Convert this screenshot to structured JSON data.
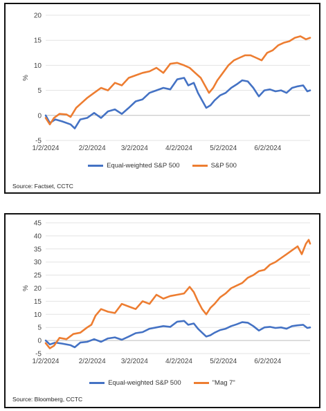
{
  "chart_data": [
    {
      "type": "line",
      "ylabel": "%",
      "ylim": [
        -5,
        20
      ],
      "yticks": [
        "-5",
        "0",
        "5",
        "10",
        "15",
        "20"
      ],
      "xticks": [
        "1/2/2024",
        "2/2/2024",
        "3/2/2024",
        "4/2/2024",
        "5/2/2024",
        "6/2/2024"
      ],
      "grid": "horizontal",
      "legend_position": "bottom",
      "source": "Source: Factset, CCTC",
      "series": [
        {
          "name": "Equal-weighted S&P 500",
          "color": "#4472C4",
          "points": [
            [
              0,
              0
            ],
            [
              3,
              -1.5
            ],
            [
              7,
              -0.8
            ],
            [
              12,
              -1.2
            ],
            [
              18,
              -1.8
            ],
            [
              21,
              -2.6
            ],
            [
              25,
              -0.8
            ],
            [
              30,
              -0.5
            ],
            [
              35,
              0.5
            ],
            [
              40,
              -0.5
            ],
            [
              45,
              0.8
            ],
            [
              50,
              1.2
            ],
            [
              55,
              0.3
            ],
            [
              60,
              1.5
            ],
            [
              65,
              2.8
            ],
            [
              70,
              3.2
            ],
            [
              75,
              4.5
            ],
            [
              80,
              5.0
            ],
            [
              85,
              5.5
            ],
            [
              90,
              5.2
            ],
            [
              95,
              7.2
            ],
            [
              100,
              7.5
            ],
            [
              103,
              6.0
            ],
            [
              107,
              6.5
            ],
            [
              110,
              4.5
            ],
            [
              113,
              3.0
            ],
            [
              116,
              1.5
            ],
            [
              119,
              2.0
            ],
            [
              122,
              3.0
            ],
            [
              126,
              4.0
            ],
            [
              130,
              4.5
            ],
            [
              134,
              5.5
            ],
            [
              138,
              6.2
            ],
            [
              142,
              7.0
            ],
            [
              146,
              6.8
            ],
            [
              150,
              5.5
            ],
            [
              154,
              3.8
            ],
            [
              158,
              5.0
            ],
            [
              162,
              5.2
            ],
            [
              166,
              4.8
            ],
            [
              170,
              5.0
            ],
            [
              174,
              4.5
            ],
            [
              178,
              5.5
            ],
            [
              182,
              5.8
            ],
            [
              186,
              6.0
            ],
            [
              189,
              4.8
            ],
            [
              191,
              5.0
            ]
          ]
        },
        {
          "name": "S&P 500",
          "color": "#ED7D31",
          "points": [
            [
              0,
              -0.5
            ],
            [
              3,
              -1.8
            ],
            [
              6,
              -0.5
            ],
            [
              10,
              0.3
            ],
            [
              15,
              0.2
            ],
            [
              18,
              -0.3
            ],
            [
              22,
              1.5
            ],
            [
              26,
              2.5
            ],
            [
              30,
              3.5
            ],
            [
              35,
              4.5
            ],
            [
              40,
              5.5
            ],
            [
              45,
              5.0
            ],
            [
              50,
              6.5
            ],
            [
              55,
              6.0
            ],
            [
              60,
              7.5
            ],
            [
              65,
              8.0
            ],
            [
              70,
              8.5
            ],
            [
              75,
              8.8
            ],
            [
              80,
              9.5
            ],
            [
              85,
              8.5
            ],
            [
              90,
              10.3
            ],
            [
              95,
              10.5
            ],
            [
              100,
              10.0
            ],
            [
              104,
              9.5
            ],
            [
              108,
              8.5
            ],
            [
              112,
              7.5
            ],
            [
              115,
              6.0
            ],
            [
              118,
              4.5
            ],
            [
              121,
              5.5
            ],
            [
              124,
              7.0
            ],
            [
              128,
              8.5
            ],
            [
              132,
              10.0
            ],
            [
              136,
              11.0
            ],
            [
              140,
              11.5
            ],
            [
              144,
              12.0
            ],
            [
              148,
              12.0
            ],
            [
              152,
              11.5
            ],
            [
              156,
              11.0
            ],
            [
              160,
              12.5
            ],
            [
              164,
              13.0
            ],
            [
              168,
              14.0
            ],
            [
              172,
              14.5
            ],
            [
              176,
              14.8
            ],
            [
              180,
              15.5
            ],
            [
              184,
              15.8
            ],
            [
              188,
              15.2
            ],
            [
              191,
              15.5
            ]
          ]
        }
      ]
    },
    {
      "type": "line",
      "ylabel": "%",
      "ylim": [
        -5,
        45
      ],
      "yticks": [
        "-5",
        "0",
        "5",
        "10",
        "15",
        "20",
        "25",
        "30",
        "35",
        "40",
        "45"
      ],
      "xticks": [
        "1/2/2024",
        "2/2/2024",
        "3/2/2024",
        "4/2/2024",
        "5/2/2024",
        "6/2/2024"
      ],
      "grid": "horizontal",
      "legend_position": "bottom",
      "source": "Source: Bloomberg, CCTC",
      "series": [
        {
          "name": "Equal-weighted S&P 500",
          "color": "#4472C4",
          "points": [
            [
              0,
              0
            ],
            [
              3,
              -1.5
            ],
            [
              7,
              -0.8
            ],
            [
              12,
              -1.2
            ],
            [
              18,
              -1.8
            ],
            [
              21,
              -2.6
            ],
            [
              25,
              -0.8
            ],
            [
              30,
              -0.5
            ],
            [
              35,
              0.5
            ],
            [
              40,
              -0.5
            ],
            [
              45,
              0.8
            ],
            [
              50,
              1.2
            ],
            [
              55,
              0.3
            ],
            [
              60,
              1.5
            ],
            [
              65,
              2.8
            ],
            [
              70,
              3.2
            ],
            [
              75,
              4.5
            ],
            [
              80,
              5.0
            ],
            [
              85,
              5.5
            ],
            [
              90,
              5.2
            ],
            [
              95,
              7.2
            ],
            [
              100,
              7.5
            ],
            [
              103,
              6.0
            ],
            [
              107,
              6.5
            ],
            [
              110,
              4.5
            ],
            [
              113,
              3.0
            ],
            [
              116,
              1.5
            ],
            [
              119,
              2.0
            ],
            [
              122,
              3.0
            ],
            [
              126,
              4.0
            ],
            [
              130,
              4.5
            ],
            [
              134,
              5.5
            ],
            [
              138,
              6.2
            ],
            [
              142,
              7.0
            ],
            [
              146,
              6.8
            ],
            [
              150,
              5.5
            ],
            [
              154,
              3.8
            ],
            [
              158,
              5.0
            ],
            [
              162,
              5.2
            ],
            [
              166,
              4.8
            ],
            [
              170,
              5.0
            ],
            [
              174,
              4.5
            ],
            [
              178,
              5.5
            ],
            [
              182,
              5.8
            ],
            [
              186,
              6.0
            ],
            [
              189,
              4.8
            ],
            [
              191,
              5.0
            ]
          ]
        },
        {
          "name": "\"Mag 7\"",
          "color": "#ED7D31",
          "points": [
            [
              0,
              -1.0
            ],
            [
              3,
              -3.0
            ],
            [
              6,
              -2.0
            ],
            [
              10,
              1.0
            ],
            [
              15,
              0.5
            ],
            [
              20,
              2.5
            ],
            [
              25,
              3.0
            ],
            [
              30,
              5.0
            ],
            [
              33,
              6.0
            ],
            [
              36,
              9.5
            ],
            [
              40,
              12.0
            ],
            [
              45,
              11.0
            ],
            [
              50,
              10.5
            ],
            [
              55,
              14.0
            ],
            [
              60,
              13.0
            ],
            [
              65,
              12.0
            ],
            [
              70,
              15.0
            ],
            [
              75,
              14.0
            ],
            [
              80,
              17.5
            ],
            [
              85,
              16.0
            ],
            [
              90,
              17.0
            ],
            [
              95,
              17.5
            ],
            [
              100,
              18.0
            ],
            [
              104,
              20.5
            ],
            [
              107,
              18.5
            ],
            [
              110,
              15.0
            ],
            [
              113,
              12.0
            ],
            [
              116,
              10.0
            ],
            [
              119,
              12.5
            ],
            [
              122,
              14.0
            ],
            [
              126,
              16.5
            ],
            [
              130,
              18.0
            ],
            [
              134,
              20.0
            ],
            [
              138,
              21.0
            ],
            [
              142,
              22.0
            ],
            [
              146,
              24.0
            ],
            [
              150,
              25.0
            ],
            [
              154,
              26.5
            ],
            [
              158,
              27.0
            ],
            [
              162,
              29.0
            ],
            [
              166,
              30.0
            ],
            [
              170,
              31.5
            ],
            [
              174,
              33.0
            ],
            [
              178,
              34.5
            ],
            [
              182,
              36.0
            ],
            [
              185,
              33.0
            ],
            [
              188,
              37.0
            ],
            [
              190,
              38.5
            ],
            [
              191,
              37.0
            ]
          ]
        }
      ]
    }
  ]
}
